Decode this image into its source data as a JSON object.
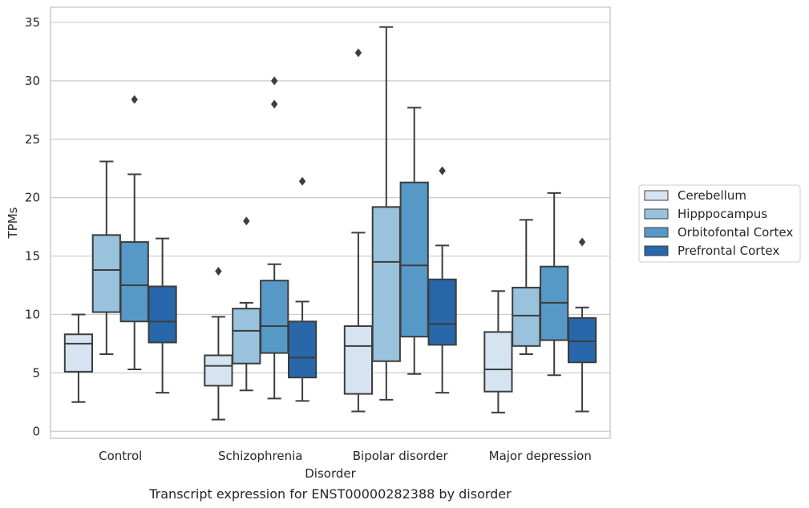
{
  "chart_data": {
    "type": "box",
    "title": "",
    "caption": "Transcript expression for ENST00000282388 by disorder",
    "xlabel": "Disorder",
    "ylabel": "TPMs",
    "ylim": [
      -0.6,
      36.3
    ],
    "yticks": [
      0,
      5,
      10,
      15,
      20,
      25,
      30,
      35
    ],
    "grid": "horizontal",
    "legend_position": "right",
    "categories": [
      "Control",
      "Schizophrenia",
      "Bipolar disorder",
      "Major depression"
    ],
    "series": [
      {
        "name": "Cerebellum",
        "color": "#d6e4f1",
        "boxes": [
          {
            "whisker_low": 2.5,
            "q1": 5.1,
            "median": 7.5,
            "q3": 8.3,
            "whisker_high": 10.0,
            "outliers": []
          },
          {
            "whisker_low": 1.0,
            "q1": 3.9,
            "median": 5.6,
            "q3": 6.5,
            "whisker_high": 9.8,
            "outliers": [
              13.7
            ]
          },
          {
            "whisker_low": 1.7,
            "q1": 3.2,
            "median": 7.3,
            "q3": 9.0,
            "whisker_high": 17.0,
            "outliers": [
              32.4
            ]
          },
          {
            "whisker_low": 1.6,
            "q1": 3.4,
            "median": 5.3,
            "q3": 8.5,
            "whisker_high": 12.0,
            "outliers": []
          }
        ]
      },
      {
        "name": "Hipppocampus",
        "color": "#99c2dc",
        "boxes": [
          {
            "whisker_low": 6.6,
            "q1": 10.2,
            "median": 13.8,
            "q3": 16.8,
            "whisker_high": 23.1,
            "outliers": []
          },
          {
            "whisker_low": 3.5,
            "q1": 5.8,
            "median": 8.6,
            "q3": 10.5,
            "whisker_high": 11.0,
            "outliers": [
              18.0
            ]
          },
          {
            "whisker_low": 2.7,
            "q1": 6.0,
            "median": 14.5,
            "q3": 19.2,
            "whisker_high": 34.6,
            "outliers": []
          },
          {
            "whisker_low": 6.6,
            "q1": 7.3,
            "median": 9.9,
            "q3": 12.3,
            "whisker_high": 18.1,
            "outliers": []
          }
        ]
      },
      {
        "name": "Orbitofontal Cortex",
        "color": "#5799c6",
        "boxes": [
          {
            "whisker_low": 5.3,
            "q1": 9.4,
            "median": 12.5,
            "q3": 16.2,
            "whisker_high": 22.0,
            "outliers": [
              28.4
            ]
          },
          {
            "whisker_low": 2.8,
            "q1": 6.7,
            "median": 9.0,
            "q3": 12.9,
            "whisker_high": 14.3,
            "outliers": [
              28.0,
              30.0
            ]
          },
          {
            "whisker_low": 4.9,
            "q1": 8.1,
            "median": 14.2,
            "q3": 21.3,
            "whisker_high": 27.7,
            "outliers": []
          },
          {
            "whisker_low": 4.8,
            "q1": 7.8,
            "median": 11.0,
            "q3": 14.1,
            "whisker_high": 20.4,
            "outliers": []
          }
        ]
      },
      {
        "name": "Prefrontal Cortex",
        "color": "#2767aa",
        "boxes": [
          {
            "whisker_low": 3.3,
            "q1": 7.6,
            "median": 9.4,
            "q3": 12.4,
            "whisker_high": 16.5,
            "outliers": []
          },
          {
            "whisker_low": 2.6,
            "q1": 4.6,
            "median": 6.3,
            "q3": 9.4,
            "whisker_high": 11.1,
            "outliers": [
              21.4
            ]
          },
          {
            "whisker_low": 3.3,
            "q1": 7.4,
            "median": 9.2,
            "q3": 13.0,
            "whisker_high": 15.9,
            "outliers": [
              22.3
            ]
          },
          {
            "whisker_low": 1.7,
            "q1": 5.9,
            "median": 7.7,
            "q3": 9.7,
            "whisker_high": 10.6,
            "outliers": [
              16.2
            ]
          }
        ]
      }
    ]
  }
}
